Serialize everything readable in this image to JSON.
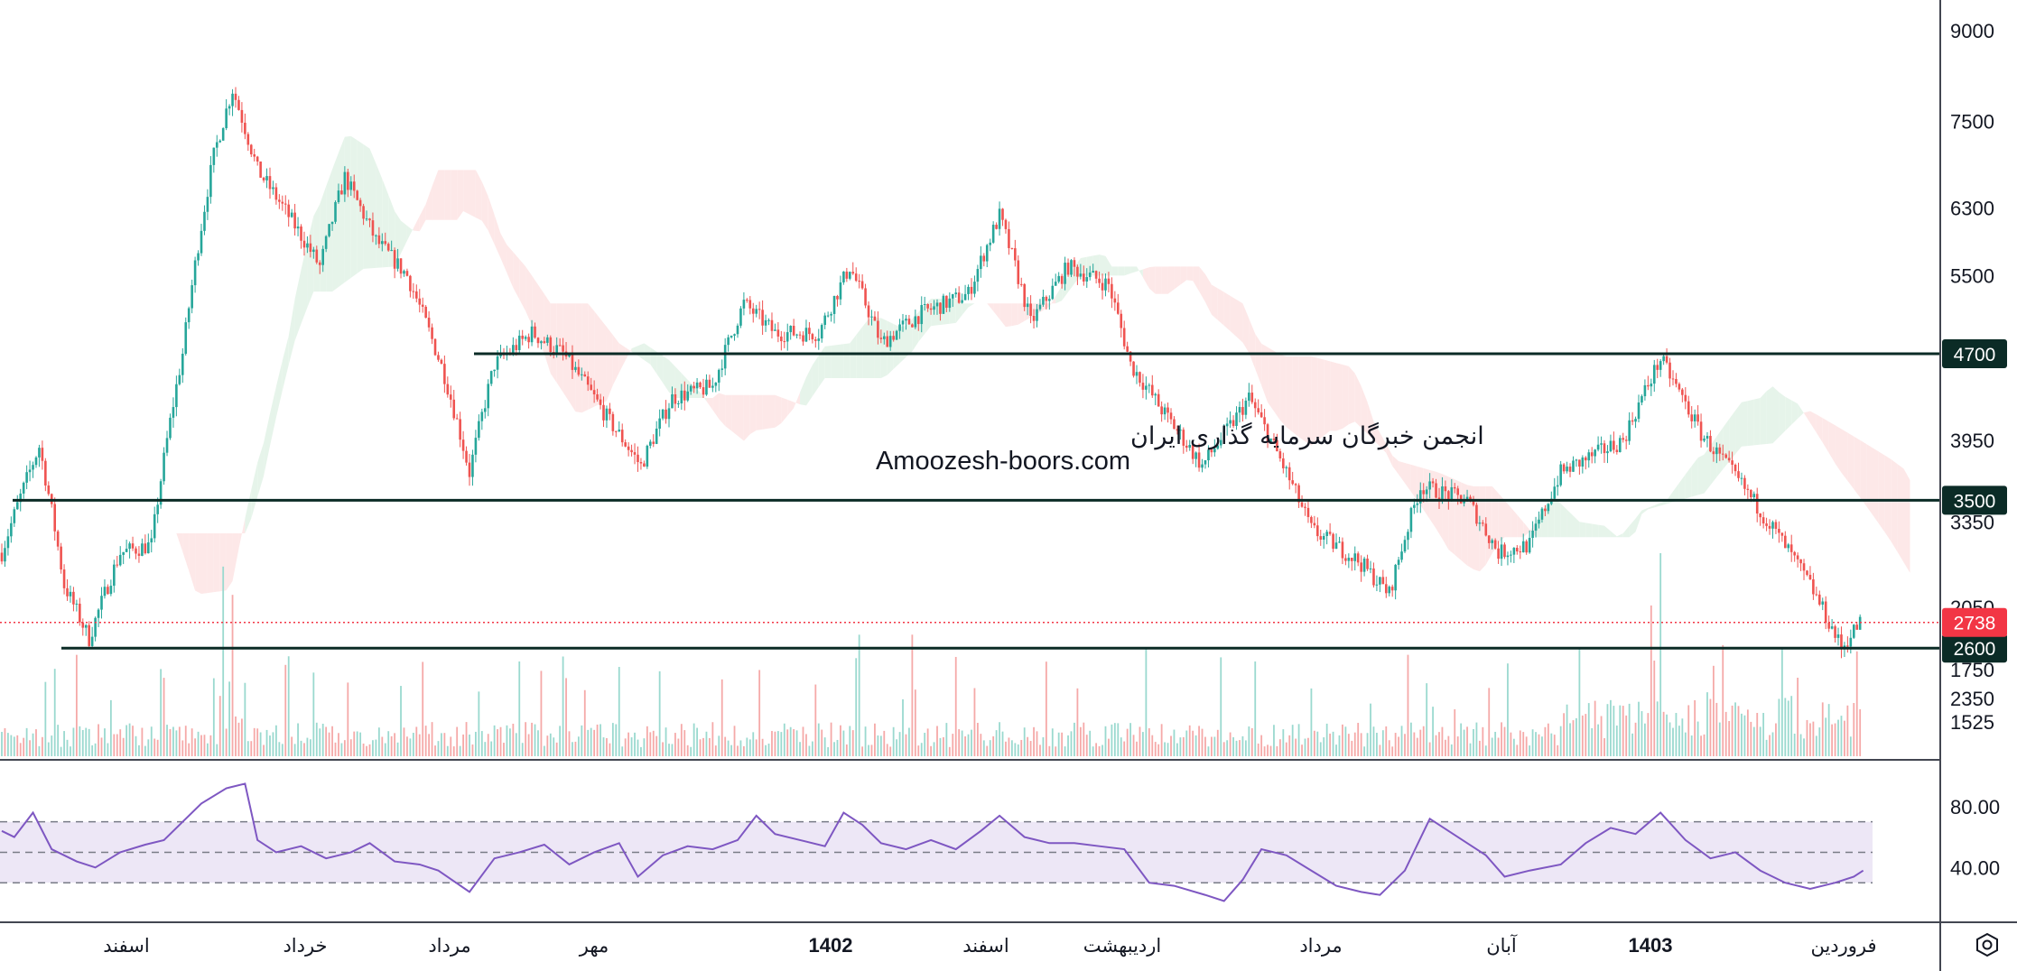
{
  "watermark": {
    "line1": "انجمن خبرگان سرمایه گذاری ایران",
    "line2": "Amoozesh-boors.com"
  },
  "colors": {
    "up": "#26a69a",
    "down": "#ef5350",
    "level_line": "#0b2b26",
    "last_price": "#f23645",
    "rsi_line": "#7e57c2",
    "rsi_band": "#ede7f6",
    "cloud_up": "#e6f4ea",
    "cloud_down": "#fde8e8"
  },
  "chart_data": [
    {
      "type": "candlestick",
      "title": "",
      "y_scale": "log",
      "y_ticks": [
        "9000",
        "7500",
        "6300",
        "5500",
        "3950",
        "3350",
        "2350",
        "2050",
        "1750",
        "1525"
      ],
      "ylim": [
        1450,
        9400
      ],
      "x_labels": [
        {
          "text": "اسفند",
          "bold": false
        },
        {
          "text": "خرداد",
          "bold": false
        },
        {
          "text": "مرداد",
          "bold": false
        },
        {
          "text": "مهر",
          "bold": false
        },
        {
          "text": "1402",
          "bold": true
        },
        {
          "text": "اسفند",
          "bold": false
        },
        {
          "text": "اردیبهشت",
          "bold": false
        },
        {
          "text": "مرداد",
          "bold": false
        },
        {
          "text": "آبان",
          "bold": false
        },
        {
          "text": "1403",
          "bold": true
        },
        {
          "text": "فروردین",
          "bold": false
        }
      ],
      "price_path": [
        {
          "i": 0,
          "close": 3150
        },
        {
          "i": 12,
          "close": 3900
        },
        {
          "i": 20,
          "close": 2950
        },
        {
          "i": 28,
          "close": 2650
        },
        {
          "i": 38,
          "close": 3150
        },
        {
          "i": 48,
          "close": 3200
        },
        {
          "i": 58,
          "close": 4700
        },
        {
          "i": 68,
          "close": 7000
        },
        {
          "i": 74,
          "close": 8000
        },
        {
          "i": 82,
          "close": 6800
        },
        {
          "i": 92,
          "close": 6200
        },
        {
          "i": 102,
          "close": 5600
        },
        {
          "i": 110,
          "close": 6700
        },
        {
          "i": 120,
          "close": 5900
        },
        {
          "i": 130,
          "close": 5500
        },
        {
          "i": 142,
          "close": 4500
        },
        {
          "i": 150,
          "close": 3700
        },
        {
          "i": 158,
          "close": 4600
        },
        {
          "i": 170,
          "close": 4900
        },
        {
          "i": 180,
          "close": 4700
        },
        {
          "i": 195,
          "close": 4100
        },
        {
          "i": 205,
          "close": 3750
        },
        {
          "i": 215,
          "close": 4300
        },
        {
          "i": 228,
          "close": 4400
        },
        {
          "i": 238,
          "close": 5200
        },
        {
          "i": 248,
          "close": 4900
        },
        {
          "i": 262,
          "close": 4900
        },
        {
          "i": 272,
          "close": 5600
        },
        {
          "i": 282,
          "close": 4800
        },
        {
          "i": 295,
          "close": 5100
        },
        {
          "i": 310,
          "close": 5300
        },
        {
          "i": 320,
          "close": 6200
        },
        {
          "i": 330,
          "close": 5000
        },
        {
          "i": 342,
          "close": 5600
        },
        {
          "i": 355,
          "close": 5400
        },
        {
          "i": 362,
          "close": 4600
        },
        {
          "i": 372,
          "close": 4200
        },
        {
          "i": 385,
          "close": 3750
        },
        {
          "i": 395,
          "close": 4100
        },
        {
          "i": 400,
          "close": 4300
        },
        {
          "i": 412,
          "close": 3700
        },
        {
          "i": 420,
          "close": 3300
        },
        {
          "i": 435,
          "close": 3100
        },
        {
          "i": 445,
          "close": 2900
        },
        {
          "i": 455,
          "close": 3600
        },
        {
          "i": 470,
          "close": 3500
        },
        {
          "i": 480,
          "close": 3150
        },
        {
          "i": 490,
          "close": 3200
        },
        {
          "i": 500,
          "close": 3700
        },
        {
          "i": 520,
          "close": 3950
        },
        {
          "i": 532,
          "close": 4650
        },
        {
          "i": 545,
          "close": 4000
        },
        {
          "i": 555,
          "close": 3700
        },
        {
          "i": 565,
          "close": 3400
        },
        {
          "i": 580,
          "close": 2950
        },
        {
          "i": 590,
          "close": 2600
        },
        {
          "i": 596,
          "close": 2738
        }
      ],
      "horizontal_levels": [
        4700,
        3500,
        2600
      ],
      "last_price": 2738,
      "volume_ticks": [
        "2050",
        "1750",
        "1525"
      ],
      "volume_peak_index": 532,
      "grid": false
    },
    {
      "type": "line",
      "title": "",
      "series": [
        {
          "points": [
            [
              0,
              64
            ],
            [
              4,
              60
            ],
            [
              10,
              76
            ],
            [
              16,
              52
            ],
            [
              24,
              44
            ],
            [
              30,
              40
            ],
            [
              38,
              50
            ],
            [
              46,
              55
            ],
            [
              52,
              58
            ],
            [
              58,
              70
            ],
            [
              64,
              82
            ],
            [
              72,
              92
            ],
            [
              78,
              95
            ],
            [
              82,
              58
            ],
            [
              88,
              50
            ],
            [
              96,
              54
            ],
            [
              104,
              46
            ],
            [
              112,
              50
            ],
            [
              118,
              56
            ],
            [
              126,
              44
            ],
            [
              134,
              42
            ],
            [
              140,
              38
            ],
            [
              150,
              24
            ],
            [
              158,
              46
            ],
            [
              166,
              50
            ],
            [
              174,
              55
            ],
            [
              182,
              42
            ],
            [
              190,
              50
            ],
            [
              198,
              56
            ],
            [
              204,
              34
            ],
            [
              212,
              48
            ],
            [
              220,
              54
            ],
            [
              228,
              52
            ],
            [
              236,
              58
            ],
            [
              242,
              74
            ],
            [
              248,
              62
            ],
            [
              256,
              58
            ],
            [
              264,
              54
            ],
            [
              270,
              76
            ],
            [
              276,
              68
            ],
            [
              282,
              56
            ],
            [
              290,
              52
            ],
            [
              298,
              58
            ],
            [
              306,
              52
            ],
            [
              314,
              64
            ],
            [
              320,
              74
            ],
            [
              328,
              60
            ],
            [
              336,
              56
            ],
            [
              344,
              56
            ],
            [
              352,
              54
            ],
            [
              360,
              52
            ],
            [
              368,
              30
            ],
            [
              376,
              28
            ],
            [
              386,
              22
            ],
            [
              392,
              18
            ],
            [
              398,
              32
            ],
            [
              404,
              52
            ],
            [
              412,
              48
            ],
            [
              420,
              38
            ],
            [
              428,
              28
            ],
            [
              436,
              24
            ],
            [
              442,
              22
            ],
            [
              450,
              38
            ],
            [
              458,
              72
            ],
            [
              464,
              64
            ],
            [
              470,
              56
            ],
            [
              476,
              48
            ],
            [
              482,
              34
            ],
            [
              490,
              38
            ],
            [
              500,
              42
            ],
            [
              508,
              56
            ],
            [
              516,
              66
            ],
            [
              524,
              62
            ],
            [
              532,
              76
            ],
            [
              540,
              58
            ],
            [
              548,
              46
            ],
            [
              556,
              50
            ],
            [
              564,
              38
            ],
            [
              572,
              30
            ],
            [
              580,
              26
            ],
            [
              588,
              30
            ],
            [
              594,
              34
            ],
            [
              597,
              38
            ]
          ]
        }
      ],
      "y_ticks": [
        "80.00",
        "40.00"
      ],
      "ylim": [
        10,
        100
      ],
      "band": [
        30,
        70
      ],
      "midline": 50
    }
  ]
}
